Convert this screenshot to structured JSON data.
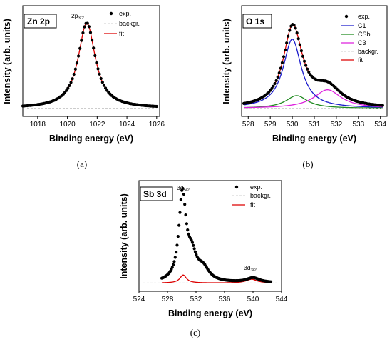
{
  "chart_data": [
    {
      "id": "zn",
      "type": "line",
      "label_box": "Zn 2p",
      "panel_label": "(a)",
      "xlabel": "Binding energy (eV)",
      "ylabel": "Intensity (arb. units)",
      "xlim": [
        1017,
        1026.2
      ],
      "ylim": [
        0,
        1.02
      ],
      "xticks": [
        1018,
        1020,
        1022,
        1024,
        1026
      ],
      "grid": false,
      "legend_position": "top-right",
      "legend": [
        "exp.",
        "backgr.",
        "fit"
      ],
      "annotations": [
        {
          "text": "2p",
          "sub": "3/2",
          "x": 1021.3,
          "y": 1.0
        }
      ],
      "background_level": 0.02,
      "series": [
        {
          "name": "exp.",
          "kind": "points",
          "color": "#000000",
          "model": {
            "baseline": 0.02,
            "peaks": [
              {
                "center": 1021.3,
                "height": 0.98,
                "width": 0.7
              }
            ]
          },
          "x_range": [
            1017,
            1026
          ],
          "points": 90
        },
        {
          "name": "backgr.",
          "kind": "dashed",
          "color": "#cccccc",
          "y": 0.02
        },
        {
          "name": "fit",
          "kind": "line",
          "color": "#dd0000",
          "model": {
            "baseline": 0.02,
            "peaks": [
              {
                "center": 1021.3,
                "height": 0.98,
                "width": 0.7
              }
            ]
          }
        }
      ]
    },
    {
      "id": "o1s",
      "type": "line",
      "label_box": "O 1s",
      "panel_label": "(b)",
      "xlabel": "Binding energy (eV)",
      "ylabel": "Intensity (arb. units)",
      "xlim": [
        527.7,
        534.3
      ],
      "ylim": [
        0,
        1.02
      ],
      "xticks": [
        528,
        529,
        530,
        531,
        532,
        533,
        534
      ],
      "grid": false,
      "legend_position": "top-right",
      "legend": [
        "exp.",
        "C1",
        "CSb",
        "C3",
        "backgr.",
        "fit"
      ],
      "background_level": 0.02,
      "series": [
        {
          "name": "exp.",
          "kind": "points",
          "color": "#000000",
          "model": {
            "baseline": 0.02,
            "peaks": [
              {
                "center": 530.0,
                "height": 0.82,
                "width": 0.5
              },
              {
                "center": 530.2,
                "height": 0.15,
                "width": 0.6
              },
              {
                "center": 531.6,
                "height": 0.22,
                "width": 0.75
              }
            ]
          },
          "x_range": [
            527.8,
            534.1
          ],
          "points": 95
        },
        {
          "name": "C1",
          "kind": "line",
          "color": "#1a1acc",
          "model": {
            "baseline": 0.02,
            "peaks": [
              {
                "center": 530.0,
                "height": 0.82,
                "width": 0.5
              }
            ]
          }
        },
        {
          "name": "CSb",
          "kind": "line",
          "color": "#1e8a1e",
          "model": {
            "baseline": 0.02,
            "peaks": [
              {
                "center": 530.2,
                "height": 0.15,
                "width": 0.6
              }
            ]
          }
        },
        {
          "name": "C3",
          "kind": "line",
          "color": "#dd22dd",
          "model": {
            "baseline": 0.02,
            "peaks": [
              {
                "center": 531.6,
                "height": 0.22,
                "width": 0.75
              }
            ]
          }
        },
        {
          "name": "backgr.",
          "kind": "dashed",
          "color": "#cccccc",
          "y": 0.02
        },
        {
          "name": "fit",
          "kind": "line",
          "color": "#dd0000",
          "model": {
            "baseline": 0.02,
            "peaks": [
              {
                "center": 530.0,
                "height": 0.82,
                "width": 0.5
              },
              {
                "center": 530.2,
                "height": 0.15,
                "width": 0.6
              },
              {
                "center": 531.6,
                "height": 0.22,
                "width": 0.75
              }
            ]
          }
        }
      ]
    },
    {
      "id": "sb3d",
      "type": "line",
      "label_box": "Sb 3d",
      "panel_label": "(c)",
      "xlabel": "Binding energy (eV)",
      "ylabel": "Intensity (arb. units)",
      "xlim": [
        524,
        544
      ],
      "ylim": [
        0,
        1.02
      ],
      "xticks": [
        524,
        528,
        532,
        536,
        540,
        544
      ],
      "grid": false,
      "legend_position": "top-right",
      "legend": [
        "exp.",
        "backgr.",
        "fit"
      ],
      "annotations": [
        {
          "text": "3d",
          "sub": "5/2",
          "x": 530.2,
          "y": 1.0
        },
        {
          "text": "3d",
          "sub": "3/2",
          "x": 539.8,
          "y": 0.12
        }
      ],
      "background_level": 0.02,
      "series": [
        {
          "name": "exp.",
          "kind": "points",
          "color": "#000000",
          "model": {
            "baseline": 0.02,
            "peaks": [
              {
                "center": 530.1,
                "height": 0.93,
                "width": 0.6
              },
              {
                "center": 531.4,
                "height": 0.25,
                "width": 0.8
              },
              {
                "center": 533.0,
                "height": 0.13,
                "width": 1.0
              },
              {
                "center": 540.0,
                "height": 0.05,
                "width": 1.1
              }
            ]
          },
          "x_range": [
            527.2,
            542.5
          ],
          "points": 115
        },
        {
          "name": "backgr.",
          "kind": "dashed",
          "color": "#cccccc",
          "y": 0.02
        },
        {
          "name": "fit",
          "kind": "line",
          "color": "#dd0000",
          "model": {
            "baseline": 0.02,
            "peaks": [
              {
                "center": 530.2,
                "height": 0.085,
                "width": 0.55
              },
              {
                "center": 539.8,
                "height": 0.04,
                "width": 0.9
              }
            ]
          }
        }
      ]
    }
  ]
}
